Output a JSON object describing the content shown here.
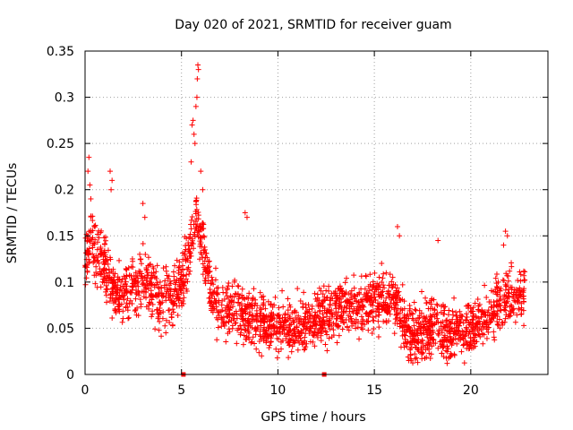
{
  "chart_data": {
    "type": "scatter",
    "title": "Day 020 of 2021, SRMTID for receiver guam",
    "xlabel": "GPS time / hours",
    "ylabel": "SRMTID / TECUs",
    "xlim": [
      0,
      24
    ],
    "ylim": [
      0,
      0.35
    ],
    "x_ticks": [
      0,
      5,
      10,
      15,
      20
    ],
    "x_tick_labels": [
      "0",
      "5",
      "10",
      "15",
      "20"
    ],
    "y_ticks": [
      0,
      0.05,
      0.1,
      0.15,
      0.2,
      0.25,
      0.3,
      0.35
    ],
    "y_tick_labels": [
      "0",
      "0.05",
      "0.1",
      "0.15",
      "0.2",
      "0.25",
      "0.3",
      "0.35"
    ],
    "grid": true,
    "marker": "+",
    "color": "#ff0000",
    "x_range_of_data": [
      0,
      22.8
    ],
    "trend": [
      {
        "x": 0.0,
        "y": 0.12
      },
      {
        "x": 0.3,
        "y": 0.16
      },
      {
        "x": 0.5,
        "y": 0.13
      },
      {
        "x": 1.0,
        "y": 0.12
      },
      {
        "x": 1.5,
        "y": 0.09
      },
      {
        "x": 2.0,
        "y": 0.09
      },
      {
        "x": 2.5,
        "y": 0.09
      },
      {
        "x": 3.0,
        "y": 0.1
      },
      {
        "x": 3.5,
        "y": 0.09
      },
      {
        "x": 4.0,
        "y": 0.08
      },
      {
        "x": 4.5,
        "y": 0.08
      },
      {
        "x": 5.0,
        "y": 0.1
      },
      {
        "x": 5.5,
        "y": 0.14
      },
      {
        "x": 5.8,
        "y": 0.17
      },
      {
        "x": 6.2,
        "y": 0.13
      },
      {
        "x": 6.5,
        "y": 0.09
      },
      {
        "x": 7.0,
        "y": 0.07
      },
      {
        "x": 8.0,
        "y": 0.07
      },
      {
        "x": 9.0,
        "y": 0.055
      },
      {
        "x": 10.0,
        "y": 0.05
      },
      {
        "x": 11.0,
        "y": 0.055
      },
      {
        "x": 12.0,
        "y": 0.06
      },
      {
        "x": 13.0,
        "y": 0.07
      },
      {
        "x": 14.0,
        "y": 0.075
      },
      {
        "x": 15.0,
        "y": 0.08
      },
      {
        "x": 16.0,
        "y": 0.08
      },
      {
        "x": 16.5,
        "y": 0.06
      },
      {
        "x": 17.0,
        "y": 0.04
      },
      {
        "x": 18.0,
        "y": 0.055
      },
      {
        "x": 19.0,
        "y": 0.045
      },
      {
        "x": 20.0,
        "y": 0.05
      },
      {
        "x": 21.0,
        "y": 0.065
      },
      {
        "x": 21.8,
        "y": 0.085
      },
      {
        "x": 22.8,
        "y": 0.085
      }
    ],
    "spread": 0.03,
    "highlights": [
      {
        "x": 0.15,
        "y": 0.22
      },
      {
        "x": 0.2,
        "y": 0.235
      },
      {
        "x": 0.25,
        "y": 0.205
      },
      {
        "x": 0.3,
        "y": 0.19
      },
      {
        "x": 1.3,
        "y": 0.22
      },
      {
        "x": 1.35,
        "y": 0.2
      },
      {
        "x": 1.4,
        "y": 0.21
      },
      {
        "x": 3.0,
        "y": 0.185
      },
      {
        "x": 3.1,
        "y": 0.17
      },
      {
        "x": 5.55,
        "y": 0.27
      },
      {
        "x": 5.6,
        "y": 0.275
      },
      {
        "x": 5.65,
        "y": 0.26
      },
      {
        "x": 5.75,
        "y": 0.29
      },
      {
        "x": 5.8,
        "y": 0.3
      },
      {
        "x": 5.82,
        "y": 0.32
      },
      {
        "x": 5.85,
        "y": 0.335
      },
      {
        "x": 5.88,
        "y": 0.33
      },
      {
        "x": 5.7,
        "y": 0.25
      },
      {
        "x": 5.5,
        "y": 0.23
      },
      {
        "x": 6.0,
        "y": 0.22
      },
      {
        "x": 6.1,
        "y": 0.2
      },
      {
        "x": 8.3,
        "y": 0.175
      },
      {
        "x": 8.4,
        "y": 0.17
      },
      {
        "x": 16.2,
        "y": 0.16
      },
      {
        "x": 16.3,
        "y": 0.15
      },
      {
        "x": 18.3,
        "y": 0.145
      },
      {
        "x": 21.8,
        "y": 0.155
      },
      {
        "x": 21.9,
        "y": 0.15
      },
      {
        "x": 21.7,
        "y": 0.14
      }
    ],
    "zero_markers": [
      {
        "x": 5.1,
        "y": 0
      },
      {
        "x": 12.4,
        "y": 0
      }
    ]
  }
}
